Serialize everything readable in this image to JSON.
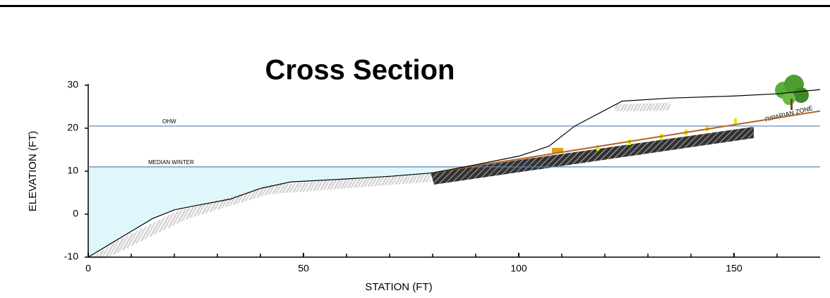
{
  "chart_data": {
    "type": "line",
    "title": "Cross Section",
    "x_label": "STATION (FT)",
    "y_label": "ELEVATION (FT)",
    "xlim": [
      0,
      170
    ],
    "ylim": [
      -10,
      30
    ],
    "xticks": [
      0,
      50,
      100,
      150
    ],
    "minor_xticks": [
      10,
      20,
      30,
      40,
      60,
      70,
      80,
      90,
      110,
      120,
      130,
      140,
      160
    ],
    "yticks": [
      -10,
      0,
      10,
      20,
      30
    ],
    "series": [
      {
        "color": "#000000",
        "x": [
          0,
          5,
          10,
          15,
          20,
          25,
          33,
          40,
          47,
          60,
          70,
          80
        ],
        "values": [
          -10,
          -7,
          -4,
          -1,
          1,
          2,
          3.5,
          6,
          7.5,
          8.2,
          8.8,
          9.6
        ]
      },
      {
        "color": "#b0652a",
        "x": [
          80,
          90,
          100,
          110,
          120,
          130,
          140,
          150,
          160,
          170
        ],
        "values": [
          9.6,
          11.3,
          12.8,
          14.4,
          16,
          17.6,
          19.2,
          20.8,
          22.4,
          24
        ]
      },
      {
        "color": "#000000",
        "x": [
          80,
          90,
          100,
          107,
          113,
          124,
          135,
          150,
          160,
          170
        ],
        "values": [
          9.6,
          11.5,
          13.5,
          15.8,
          20.5,
          26.3,
          27,
          27.5,
          28,
          29
        ]
      }
    ],
    "levels": [
      {
        "label": "OHW",
        "value": 20.5
      },
      {
        "label": "MEDIAN WINTER",
        "value": 11
      }
    ],
    "level_color": "#5b7fb5",
    "water_color": "#dff7fb",
    "annotation": "RIPARIAN ZONE"
  }
}
